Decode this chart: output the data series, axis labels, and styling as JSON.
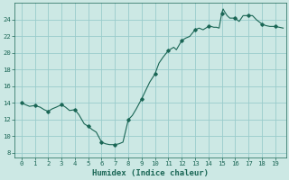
{
  "xlabel": "Humidex (Indice chaleur)",
  "background_color": "#cce8e4",
  "grid_color": "#99cccc",
  "line_color": "#1a6655",
  "marker_color": "#1a6655",
  "xlim": [
    -0.5,
    19.8
  ],
  "ylim": [
    7.5,
    26.0
  ],
  "yticks": [
    8,
    10,
    12,
    14,
    16,
    18,
    20,
    22,
    24
  ],
  "xticks": [
    0,
    1,
    2,
    3,
    4,
    5,
    6,
    7,
    8,
    9,
    10,
    11,
    12,
    13,
    14,
    15,
    16,
    17,
    18,
    19
  ],
  "x": [
    0,
    0.3,
    0.6,
    1.0,
    1.4,
    1.7,
    2.0,
    2.3,
    2.6,
    3.0,
    3.3,
    3.6,
    4.0,
    4.3,
    4.7,
    5.0,
    5.3,
    5.6,
    6.0,
    6.3,
    6.6,
    7.0,
    7.3,
    7.6,
    8.0,
    8.3,
    8.6,
    9.0,
    9.3,
    9.6,
    10.0,
    10.3,
    10.6,
    11.0,
    11.2,
    11.4,
    11.6,
    12.0,
    12.3,
    12.6,
    13.0,
    13.3,
    13.6,
    14.0,
    14.2,
    14.4,
    14.6,
    14.8,
    15.0,
    15.1,
    15.2,
    15.4,
    15.6,
    16.0,
    16.3,
    16.6,
    17.0,
    17.3,
    17.6,
    18.0,
    18.3,
    18.6,
    19.0,
    19.3,
    19.6
  ],
  "y": [
    14.0,
    13.8,
    13.6,
    13.7,
    13.5,
    13.2,
    13.0,
    13.3,
    13.5,
    13.8,
    13.5,
    13.1,
    13.2,
    12.6,
    11.5,
    11.2,
    10.8,
    10.5,
    9.3,
    9.1,
    9.0,
    9.0,
    9.1,
    9.3,
    12.0,
    12.5,
    13.3,
    14.5,
    15.5,
    16.5,
    17.5,
    18.8,
    19.5,
    20.3,
    20.5,
    20.7,
    20.4,
    21.5,
    21.8,
    22.0,
    22.8,
    23.0,
    22.8,
    23.2,
    23.2,
    23.1,
    23.1,
    23.0,
    24.8,
    25.3,
    25.0,
    24.5,
    24.2,
    24.2,
    23.8,
    24.5,
    24.5,
    24.5,
    24.0,
    23.5,
    23.3,
    23.2,
    23.2,
    23.1,
    23.0
  ],
  "marker_x": [
    0,
    1,
    2,
    3,
    4,
    5,
    6,
    7,
    8,
    9,
    10,
    11,
    12,
    13,
    14,
    15,
    16,
    17,
    18,
    19
  ],
  "marker_y": [
    14.0,
    13.7,
    13.0,
    13.8,
    13.2,
    11.2,
    9.3,
    9.0,
    12.0,
    14.5,
    17.5,
    20.3,
    21.5,
    22.8,
    23.2,
    24.8,
    24.2,
    24.5,
    23.5,
    23.2
  ]
}
